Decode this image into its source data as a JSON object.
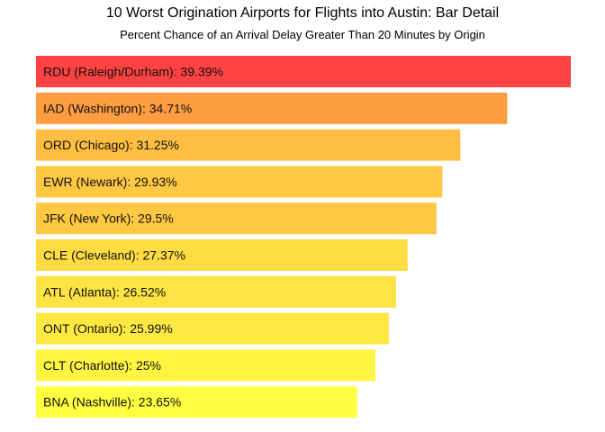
{
  "chart_data": {
    "type": "bar",
    "orientation": "horizontal",
    "title": "10 Worst Origination Airports for Flights into Austin: Bar Detail",
    "subtitle": "Percent Chance of an Arrival Delay Greater Than 20 Minutes by Origin",
    "categories": [
      "RDU (Raleigh/Durham)",
      "IAD (Washington)",
      "ORD (Chicago)",
      "EWR (Newark)",
      "JFK (New York)",
      "CLE (Cleveland)",
      "ATL (Atlanta)",
      "ONT (Ontario)",
      "CLT (Charlotte)",
      "BNA (Nashville)"
    ],
    "values": [
      39.39,
      34.71,
      31.25,
      29.93,
      29.5,
      27.37,
      26.52,
      25.99,
      25,
      23.65
    ],
    "labels": [
      "RDU (Raleigh/Durham): 39.39%",
      "IAD (Washington): 34.71%",
      "ORD (Chicago): 31.25%",
      "EWR (Newark): 29.93%",
      "JFK (New York): 29.5%",
      "CLE (Cleveland): 27.37%",
      "ATL (Atlanta): 26.52%",
      "ONT (Ontario): 25.99%",
      "CLT (Charlotte): 25%",
      "BNA (Nashville): 23.65%"
    ],
    "colors": [
      "#ff4242",
      "#ff9d42",
      "#ffbe42",
      "#ffc842",
      "#ffc842",
      "#ffdc42",
      "#ffe342",
      "#ffe842",
      "#fff542",
      "#ffff42"
    ],
    "xlim": [
      0,
      39.39
    ],
    "grid": false,
    "legend": "none"
  }
}
